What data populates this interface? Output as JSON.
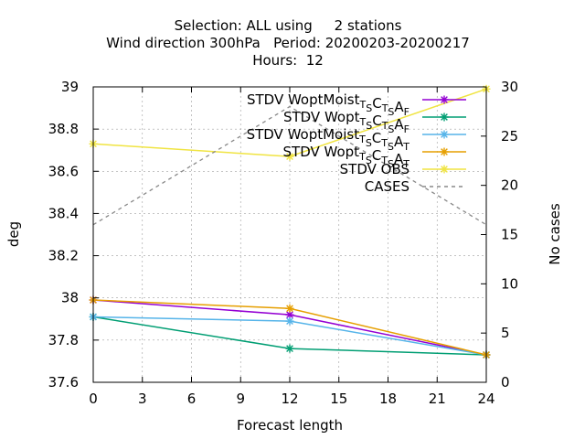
{
  "chart_data": {
    "type": "line",
    "title": [
      "Selection: ALL using     2 stations",
      "Wind direction 300hPa   Period: 20200203-20200217",
      "Hours:  12"
    ],
    "xlabel": "Forecast length",
    "ylabel": "deg",
    "y2label": "No cases",
    "x_ticks": [
      "0",
      "3",
      "6",
      "9",
      "12",
      "15",
      "18",
      "21",
      "24"
    ],
    "y_ticks": [
      "37.6",
      "37.8",
      "38",
      "38.2",
      "38.4",
      "38.6",
      "38.8",
      "39"
    ],
    "y2_ticks": [
      "0",
      "5",
      "10",
      "15",
      "20",
      "25",
      "30"
    ],
    "xlim": [
      0,
      24
    ],
    "ylim": [
      37.6,
      39.0
    ],
    "y2lim": [
      0,
      30
    ],
    "grid": true,
    "legend_position": "top-right",
    "series": [
      {
        "name": "STDV WoptMoist TSCTSAF",
        "legend_parts": [
          [
            "STDV WoptMoist",
            ""
          ],
          [
            "T",
            "sub"
          ],
          [
            "S",
            "sub"
          ],
          [
            "C",
            ""
          ],
          [
            "T",
            "sub"
          ],
          [
            "S",
            "sub"
          ],
          [
            "A",
            ""
          ],
          [
            "F",
            "sub"
          ]
        ],
        "color": "#9400d3",
        "marker": "star",
        "axis": "y",
        "x": [
          0,
          12,
          24
        ],
        "y": [
          37.99,
          37.92,
          37.73
        ]
      },
      {
        "name": "STDV Wopt TSCTSAF",
        "legend_parts": [
          [
            "STDV Wopt",
            ""
          ],
          [
            "T",
            "sub"
          ],
          [
            "S",
            "sub"
          ],
          [
            "C",
            ""
          ],
          [
            "T",
            "sub"
          ],
          [
            "S",
            "sub"
          ],
          [
            "A",
            ""
          ],
          [
            "F",
            "sub"
          ]
        ],
        "color": "#009e73",
        "marker": "star",
        "axis": "y",
        "x": [
          0,
          12,
          24
        ],
        "y": [
          37.91,
          37.76,
          37.73
        ]
      },
      {
        "name": "STDV WoptMoist TSCTSAT",
        "legend_parts": [
          [
            "STDV WoptMoist",
            ""
          ],
          [
            "T",
            "sub"
          ],
          [
            "S",
            "sub"
          ],
          [
            "C",
            ""
          ],
          [
            "T",
            "sub"
          ],
          [
            "S",
            "sub"
          ],
          [
            "A",
            ""
          ],
          [
            "T",
            "sub"
          ]
        ],
        "color": "#56b4e9",
        "marker": "star",
        "axis": "y",
        "x": [
          0,
          12,
          24
        ],
        "y": [
          37.91,
          37.89,
          37.73
        ]
      },
      {
        "name": "STDV Wopt TSCTSAT",
        "legend_parts": [
          [
            "STDV Wopt",
            ""
          ],
          [
            "T",
            "sub"
          ],
          [
            "S",
            "sub"
          ],
          [
            "C",
            ""
          ],
          [
            "T",
            "sub"
          ],
          [
            "S",
            "sub"
          ],
          [
            "A",
            ""
          ],
          [
            "T",
            "sub"
          ]
        ],
        "color": "#e69f00",
        "marker": "star",
        "axis": "y",
        "x": [
          0,
          12,
          24
        ],
        "y": [
          37.99,
          37.95,
          37.73
        ]
      },
      {
        "name": "STDV OBS",
        "legend_parts": [
          [
            "STDV OBS",
            ""
          ]
        ],
        "color": "#f0e442",
        "marker": "star",
        "axis": "y",
        "x": [
          0,
          12,
          24
        ],
        "y": [
          38.73,
          38.67,
          38.99
        ]
      },
      {
        "name": "CASES",
        "legend_parts": [
          [
            "CASES",
            ""
          ]
        ],
        "color": "#888888",
        "marker": "none",
        "dashed": true,
        "axis": "y2",
        "x": [
          0,
          12,
          24
        ],
        "y": [
          16,
          28,
          16
        ]
      }
    ]
  }
}
